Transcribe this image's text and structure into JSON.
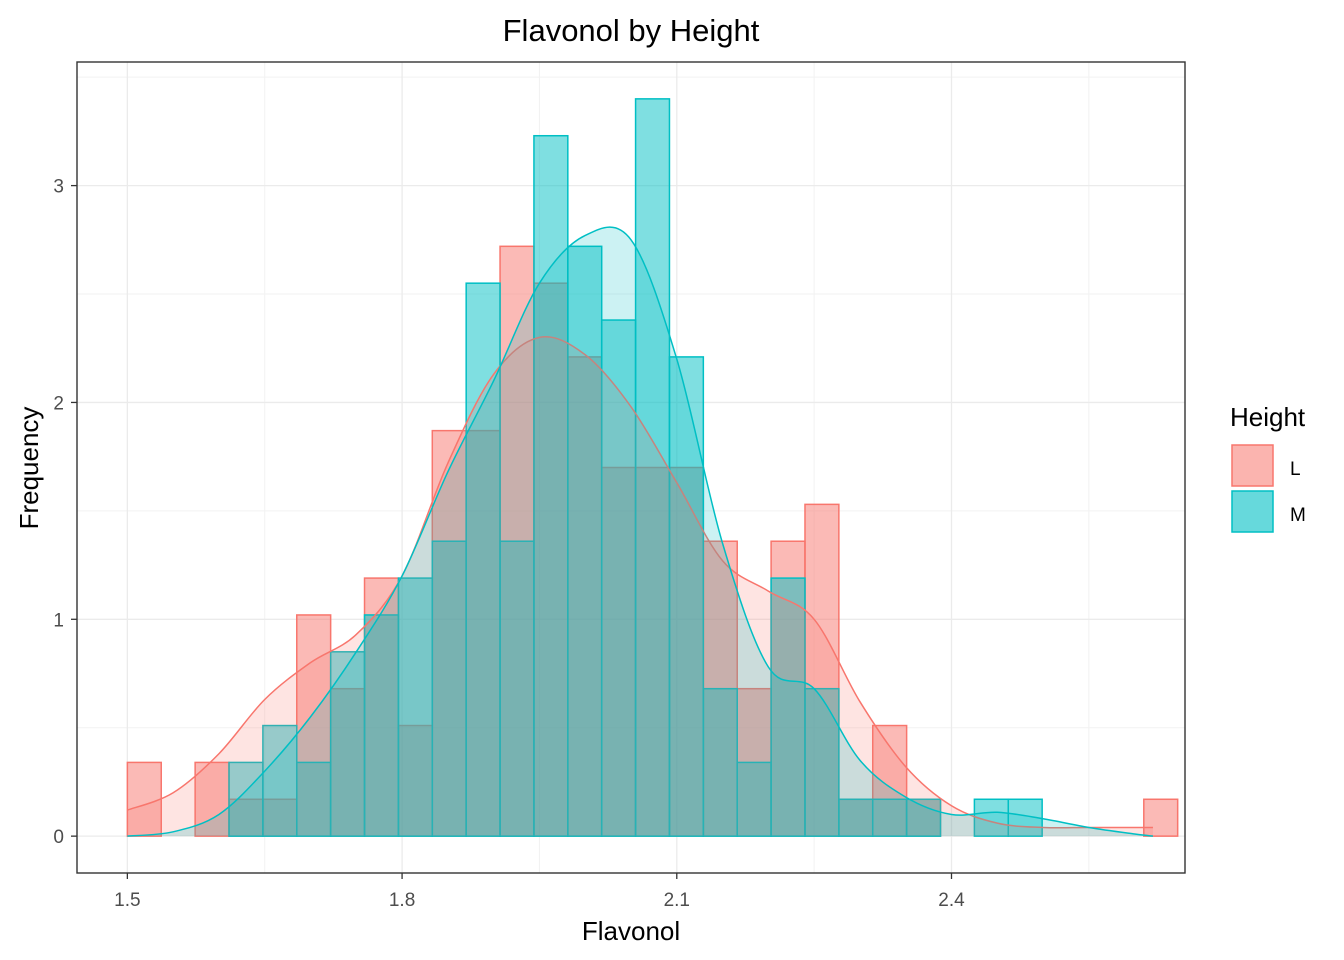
{
  "chart_data": {
    "type": "histogram",
    "title": "Flavonol by Height",
    "xlabel": "Flavonol",
    "ylabel": "Frequency",
    "xlim": [
      1.445,
      2.655
    ],
    "ylim": [
      -0.17,
      3.57
    ],
    "x_ticks": [
      "1.5",
      "1.8",
      "2.1",
      "2.4"
    ],
    "x_tick_values": [
      1.5,
      1.8,
      2.1,
      2.4
    ],
    "y_ticks": [
      "0",
      "1",
      "2",
      "3"
    ],
    "y_tick_values": [
      0,
      1,
      2,
      3
    ],
    "grid": true,
    "legend": {
      "title": "Height",
      "position": "right"
    },
    "bin_edges": [
      1.5,
      1.537,
      1.574,
      1.611,
      1.648,
      1.685,
      1.722,
      1.759,
      1.796,
      1.833,
      1.87,
      1.907,
      1.944,
      1.981,
      2.018,
      2.055,
      2.092,
      2.129,
      2.166,
      2.203,
      2.24,
      2.277,
      2.314,
      2.351,
      2.388,
      2.425,
      2.462,
      2.499,
      2.536,
      2.573,
      2.61,
      2.647
    ],
    "series": [
      {
        "name": "L",
        "fill": "#F8766D",
        "values": [
          0.34,
          0,
          0.34,
          0.17,
          0.17,
          1.02,
          0.68,
          1.19,
          0.51,
          1.87,
          1.87,
          2.72,
          2.55,
          2.21,
          1.7,
          1.7,
          1.7,
          1.36,
          0.68,
          1.36,
          1.53,
          0.17,
          0.51,
          0.17,
          0,
          0,
          0,
          0,
          0,
          0,
          0.17
        ],
        "density": [
          [
            1.5,
            0.12
          ],
          [
            1.55,
            0.2
          ],
          [
            1.6,
            0.38
          ],
          [
            1.65,
            0.63
          ],
          [
            1.7,
            0.8
          ],
          [
            1.75,
            0.93
          ],
          [
            1.8,
            1.2
          ],
          [
            1.85,
            1.72
          ],
          [
            1.9,
            2.13
          ],
          [
            1.95,
            2.3
          ],
          [
            2.0,
            2.22
          ],
          [
            2.05,
            1.98
          ],
          [
            2.1,
            1.63
          ],
          [
            2.15,
            1.27
          ],
          [
            2.2,
            1.13
          ],
          [
            2.25,
            1.0
          ],
          [
            2.3,
            0.62
          ],
          [
            2.35,
            0.32
          ],
          [
            2.4,
            0.14
          ],
          [
            2.45,
            0.06
          ],
          [
            2.5,
            0.04
          ],
          [
            2.55,
            0.04
          ],
          [
            2.6,
            0.04
          ],
          [
            2.62,
            0.04
          ]
        ]
      },
      {
        "name": "M",
        "fill": "#00BFC4",
        "values": [
          0,
          0,
          0,
          0.34,
          0.51,
          0.34,
          0.85,
          1.02,
          1.19,
          1.36,
          2.55,
          1.36,
          3.23,
          2.72,
          2.38,
          3.4,
          2.21,
          0.68,
          0.34,
          1.19,
          0.68,
          0.17,
          0.17,
          0.17,
          0,
          0.17,
          0.17,
          0,
          0,
          0,
          0
        ],
        "density": [
          [
            1.5,
            0.0
          ],
          [
            1.55,
            0.02
          ],
          [
            1.6,
            0.1
          ],
          [
            1.65,
            0.3
          ],
          [
            1.7,
            0.55
          ],
          [
            1.75,
            0.85
          ],
          [
            1.8,
            1.2
          ],
          [
            1.85,
            1.68
          ],
          [
            1.9,
            2.1
          ],
          [
            1.95,
            2.55
          ],
          [
            2.0,
            2.77
          ],
          [
            2.05,
            2.75
          ],
          [
            2.1,
            2.2
          ],
          [
            2.15,
            1.35
          ],
          [
            2.2,
            0.78
          ],
          [
            2.25,
            0.68
          ],
          [
            2.3,
            0.35
          ],
          [
            2.35,
            0.18
          ],
          [
            2.4,
            0.1
          ],
          [
            2.45,
            0.11
          ],
          [
            2.5,
            0.08
          ],
          [
            2.55,
            0.04
          ],
          [
            2.6,
            0.01
          ],
          [
            2.62,
            0.0
          ]
        ]
      }
    ]
  }
}
